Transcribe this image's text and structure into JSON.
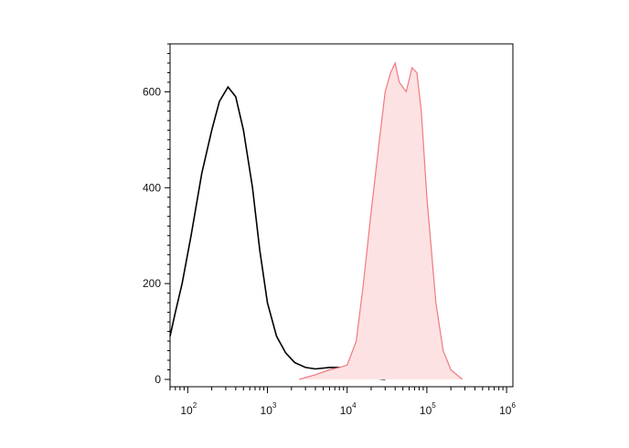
{
  "chart_data": {
    "type": "area",
    "title": "",
    "xlabel": "",
    "ylabel": "",
    "x_scale": "log",
    "xlim": [
      60,
      1200000
    ],
    "ylim": [
      0,
      700
    ],
    "grid": false,
    "legend": "none",
    "x_ticks": [
      {
        "base": "10",
        "exp": "2",
        "value": 100
      },
      {
        "base": "10",
        "exp": "3",
        "value": 1000
      },
      {
        "base": "10",
        "exp": "4",
        "value": 10000
      },
      {
        "base": "10",
        "exp": "5",
        "value": 100000
      },
      {
        "base": "10",
        "exp": "6",
        "value": 1000000
      }
    ],
    "y_ticks": [
      {
        "label": "0",
        "value": 0
      },
      {
        "label": "200",
        "value": 200
      },
      {
        "label": "400",
        "value": 400
      },
      {
        "label": "600",
        "value": 600
      }
    ],
    "series": [
      {
        "style": "outline",
        "color": "#000000",
        "points": [
          [
            60,
            90
          ],
          [
            70,
            140
          ],
          [
            85,
            200
          ],
          [
            110,
            300
          ],
          [
            150,
            430
          ],
          [
            200,
            520
          ],
          [
            250,
            580
          ],
          [
            320,
            610
          ],
          [
            400,
            590
          ],
          [
            500,
            520
          ],
          [
            650,
            400
          ],
          [
            800,
            270
          ],
          [
            1000,
            160
          ],
          [
            1300,
            90
          ],
          [
            1700,
            55
          ],
          [
            2200,
            35
          ],
          [
            3000,
            25
          ],
          [
            4000,
            22
          ],
          [
            6000,
            25
          ],
          [
            8000,
            25
          ],
          [
            10000,
            18
          ],
          [
            14000,
            8
          ],
          [
            20000,
            3
          ],
          [
            30000,
            0
          ]
        ]
      },
      {
        "style": "filled",
        "color": "#f07a80",
        "fill": "#fde2e3",
        "points": [
          [
            2500,
            0
          ],
          [
            4000,
            10
          ],
          [
            6000,
            20
          ],
          [
            8000,
            25
          ],
          [
            10000,
            30
          ],
          [
            13000,
            80
          ],
          [
            16000,
            200
          ],
          [
            20000,
            350
          ],
          [
            25000,
            490
          ],
          [
            30000,
            600
          ],
          [
            35000,
            640
          ],
          [
            40000,
            660
          ],
          [
            45000,
            620
          ],
          [
            55000,
            600
          ],
          [
            65000,
            650
          ],
          [
            75000,
            640
          ],
          [
            85000,
            560
          ],
          [
            100000,
            380
          ],
          [
            130000,
            160
          ],
          [
            160000,
            60
          ],
          [
            200000,
            20
          ],
          [
            280000,
            0
          ]
        ]
      }
    ]
  }
}
